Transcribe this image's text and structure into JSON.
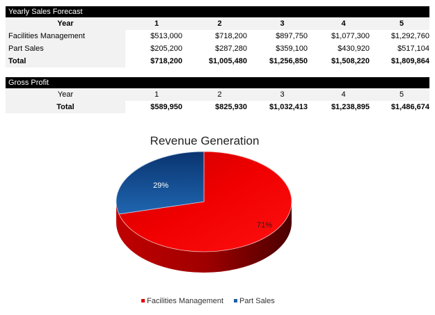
{
  "sales": {
    "title": "Yearly Sales Forecast",
    "header": [
      "Year",
      "1",
      "2",
      "3",
      "4",
      "5"
    ],
    "rows": [
      [
        "Facilities Management",
        "$513,000",
        "$718,200",
        "$897,750",
        "$1,077,300",
        "$1,292,760"
      ],
      [
        "Part Sales",
        "$205,200",
        "$287,280",
        "$359,100",
        "$430,920",
        "$517,104"
      ],
      [
        "Total",
        "$718,200",
        "$1,005,480",
        "$1,256,850",
        "$1,508,220",
        "$1,809,864"
      ]
    ]
  },
  "profit": {
    "title": "Gross Profit",
    "header": [
      "Year",
      "1",
      "2",
      "3",
      "4",
      "5"
    ],
    "total": [
      "Total",
      "$589,950",
      "$825,930",
      "$1,032,413",
      "$1,238,895",
      "$1,486,674"
    ]
  },
  "chart_data": {
    "type": "pie",
    "title": "Revenue Generation",
    "style": "3d",
    "categories": [
      "Facilities Management",
      "Part Sales"
    ],
    "values": [
      71,
      29
    ],
    "labels": [
      "71%",
      "29%"
    ],
    "colors": [
      "#e60000",
      "#1f5fa6"
    ],
    "legend": "bottom"
  }
}
